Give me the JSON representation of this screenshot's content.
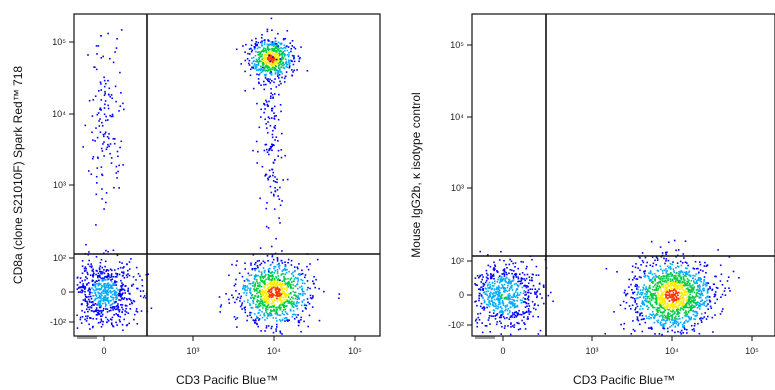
{
  "chart_data": [
    {
      "type": "scatter",
      "subtype": "flow-cytometry-pseudocolor-dot-plot",
      "xlabel": "CD3 Pacific Blue™",
      "ylabel": "CD8a (clone S21010F) Spark Red™ 718",
      "xscale": "biexponential",
      "yscale": "biexponential",
      "x_ticks": [
        "0",
        "10³",
        "10⁴",
        "10⁵"
      ],
      "y_ticks": [
        "-10²",
        "0",
        "10²",
        "10³",
        "10⁴",
        "10⁵"
      ],
      "gate": {
        "x": 150,
        "y": 150
      },
      "grid": false,
      "legend": "none",
      "colormap": [
        "#0000ff",
        "#00aaff",
        "#00cc44",
        "#ffee00",
        "#ff3300"
      ],
      "populations": [
        {
          "x_center": 0,
          "y_center": 0,
          "count": 650
        },
        {
          "x_center": 0,
          "y_center": 10000,
          "count": 140
        },
        {
          "x_center": 10000,
          "y_center": 0,
          "count": 900
        },
        {
          "x_center": 9000,
          "y_center": 60000,
          "count": 550
        },
        {
          "x_center": 9000,
          "y_center": 6000,
          "count": 160
        }
      ]
    },
    {
      "type": "scatter",
      "subtype": "flow-cytometry-pseudocolor-dot-plot",
      "xlabel": "CD3 Pacific Blue™",
      "ylabel": "Mouse IgG2b, κ isotype control",
      "xscale": "biexponential",
      "yscale": "biexponential",
      "x_ticks": [
        "0",
        "10³",
        "10⁴",
        "10⁵"
      ],
      "y_ticks": [
        "-10²",
        "0",
        "10²",
        "10³",
        "10⁴",
        "10⁵"
      ],
      "gate": {
        "x": 150,
        "y": 150
      },
      "grid": false,
      "legend": "none",
      "colormap": [
        "#0000ff",
        "#00aaff",
        "#00cc44",
        "#ffee00",
        "#ff3300"
      ],
      "populations": [
        {
          "x_center": 0,
          "y_center": 0,
          "count": 650
        },
        {
          "x_center": 10000,
          "y_center": 0,
          "count": 1300
        }
      ]
    }
  ]
}
